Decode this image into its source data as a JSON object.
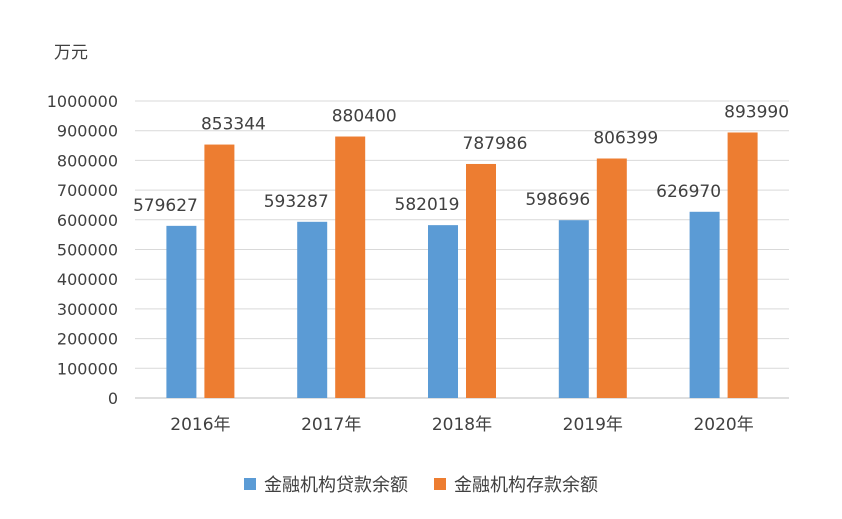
{
  "chart_data": {
    "type": "bar",
    "unit_label": "万元",
    "categories": [
      "2016年",
      "2017年",
      "2018年",
      "2019年",
      "2020年"
    ],
    "series": [
      {
        "name": "金融机构贷款余额",
        "color": "#5b9bd5",
        "values": [
          579627,
          593287,
          582019,
          598696,
          626970
        ]
      },
      {
        "name": "金融机构存款余额",
        "color": "#ed7d31",
        "values": [
          853344,
          880400,
          787986,
          806399,
          893990
        ]
      }
    ],
    "ylim": [
      0,
      1000000
    ],
    "yticks": [
      0,
      100000,
      200000,
      300000,
      400000,
      500000,
      600000,
      700000,
      800000,
      900000,
      1000000
    ],
    "grid": true,
    "legend": "bottom"
  }
}
